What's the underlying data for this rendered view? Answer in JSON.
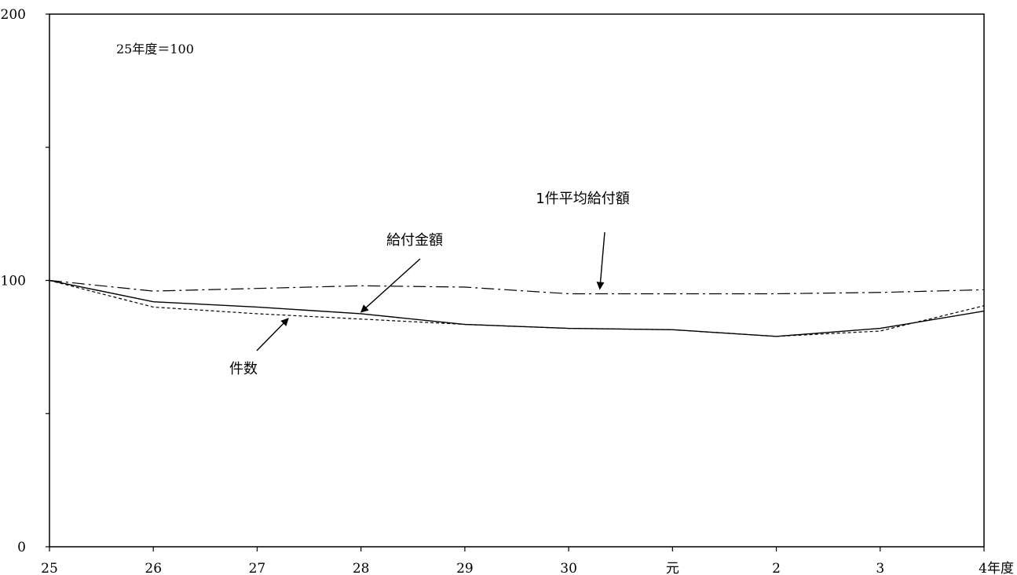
{
  "chart_data": {
    "type": "line",
    "note": "25年度＝100",
    "categories": [
      "25",
      "26",
      "27",
      "28",
      "29",
      "30",
      "元",
      "2",
      "3",
      "4年度"
    ],
    "ylim": [
      0,
      200
    ],
    "y_ticks": [
      0,
      100,
      200
    ],
    "series": [
      {
        "name": "給付金額",
        "style": "solid",
        "values": [
          100,
          92,
          90,
          87.5,
          83.5,
          82,
          81.5,
          79,
          82,
          88.5
        ]
      },
      {
        "name": "件数",
        "style": "dashed",
        "values": [
          100,
          90,
          87.5,
          85.5,
          83.5,
          82,
          81.5,
          79,
          81,
          90.5
        ]
      },
      {
        "name": "1件平均給付額",
        "style": "dashdot",
        "values": [
          100,
          96,
          97,
          98,
          97.5,
          95,
          95,
          95,
          95.5,
          96.5
        ]
      }
    ]
  }
}
